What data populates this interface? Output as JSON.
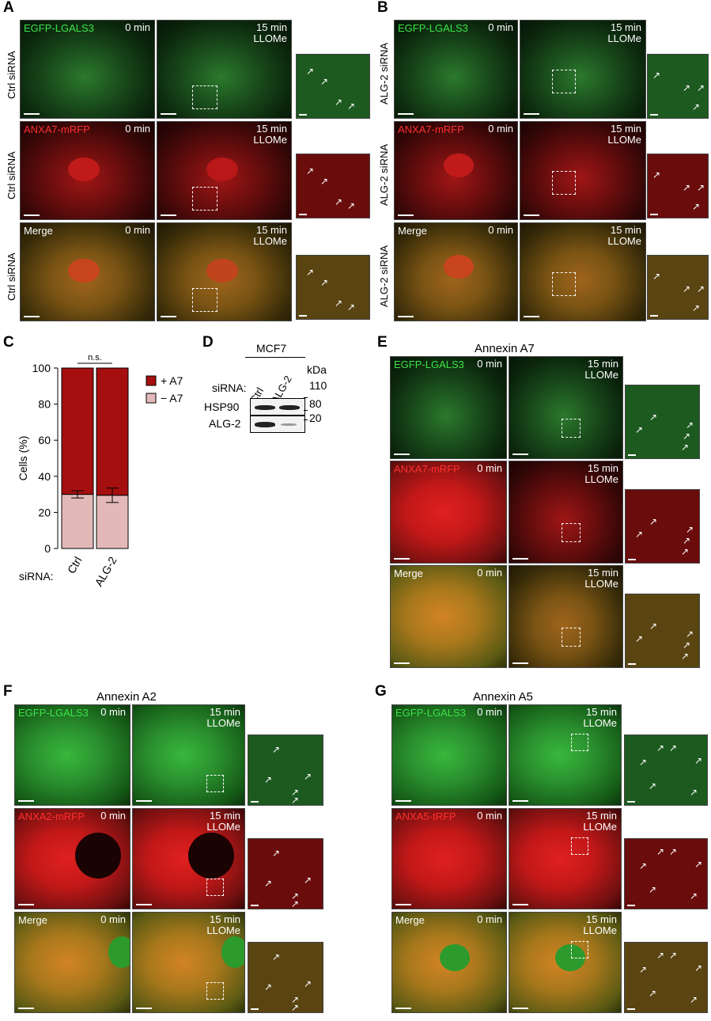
{
  "panels": {
    "A": {
      "label": "A",
      "row_label": "Ctrl siRNA"
    },
    "B": {
      "label": "B",
      "row_label": "ALG-2 siRNA"
    },
    "C": {
      "label": "C"
    },
    "D": {
      "label": "D",
      "cell_line": "MCF7",
      "sirna_label": "siRNA:",
      "lanes": [
        "Ctrl",
        "ALG-2"
      ],
      "kda_label": "kDa",
      "markers": [
        "110",
        "80",
        "20"
      ],
      "proteins": [
        "HSP90",
        "ALG-2"
      ]
    },
    "E": {
      "label": "E",
      "title": "Annexin A7"
    },
    "F": {
      "label": "F",
      "title": "Annexin A2"
    },
    "G": {
      "label": "G",
      "title": "Annexin A5"
    }
  },
  "channels": {
    "egfp": "EGFP-LGALS3",
    "anxa7": "ANXA7-mRFP",
    "anxa2": "ANXA2-mRFP",
    "anxa5": "ANXA5-tRFP",
    "merge": "Merge"
  },
  "times": {
    "t0": "0 min",
    "t15a": "15 min",
    "t15b": "LLOMe"
  },
  "arrow_glyph": "↗",
  "colors": {
    "egfp": "#3ee24a",
    "mrfp": "#ff3030",
    "plus_a7": "#a50f0f",
    "minus_a7": "#e3b8b8"
  },
  "chart_data": {
    "type": "bar",
    "stacked": true,
    "categories": [
      "Ctrl",
      "ALG-2"
    ],
    "series": [
      {
        "name": "− A7",
        "values": [
          30,
          29.5
        ],
        "error": [
          2,
          4
        ]
      },
      {
        "name": "+ A7",
        "values": [
          70,
          70.5
        ]
      }
    ],
    "ylabel": "Cells (%)",
    "xlabel": "siRNA:",
    "ylim": [
      0,
      100
    ],
    "yticks": [
      "0",
      "20",
      "40",
      "60",
      "80",
      "100"
    ],
    "significance": "n.s.",
    "legend": [
      "+ A7",
      "− A7"
    ],
    "legend_position": "right"
  }
}
